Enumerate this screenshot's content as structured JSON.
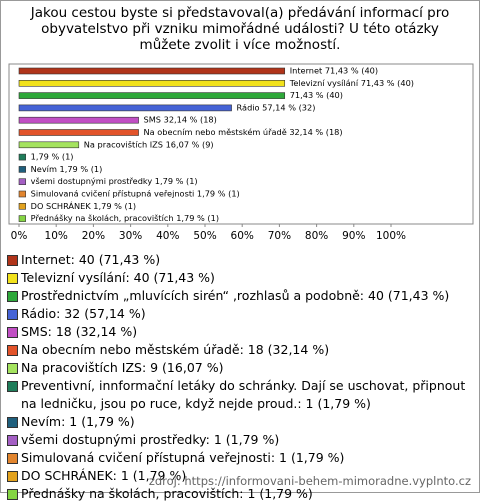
{
  "chart_data": {
    "type": "hbar",
    "title": "Jakou cestou byste si představoval(a) předávání informací pro obyvatelstvo při vzniku mimořádné události? U této otázky můžete zvolit i více možností.",
    "categories": [
      "Internet: 40 (71,43 %)",
      "Televizní vysílání: 40 (71,43 %)",
      "Prostřednictvím „mluvících sirén“ ,rozhlasů a podobně: 40 (71,43 %)",
      "Rádio: 32 (57,14 %)",
      "SMS: 18 (32,14 %)",
      "Na obecním nebo městském úřadě: 18 (32,14 %)",
      "Na pracovištích IZS: 9 (16,07 %)",
      "Preventivní, innformační letáky do schránky. Dají se uschovat, připnout na ledničku, jsou po ruce, když nejde proud.: 1 (1,79 %)",
      "Nevím: 1 (1,79 %)",
      "všemi dostupnými prostředky: 1 (1,79 %)",
      "Simulovaná cvičení přístupná veřejnosti: 1 (1,79 %)",
      "DO SCHRÁNEK: 1 (1,79 %)",
      "Přednášky na školách, pracovištích: 1 (1,79 %)"
    ],
    "values": [
      71.43,
      71.43,
      71.43,
      57.14,
      32.14,
      32.14,
      16.07,
      1.79,
      1.79,
      1.79,
      1.79,
      1.79,
      1.79
    ],
    "value_labels": [
      "Internet 71,43 % (40)",
      "Televizní vysílání 71,43 % (40)",
      "71,43 % (40)",
      "Rádio 57,14 % (32)",
      "SMS 32,14 % (18)",
      "Na obecním nebo městském úřadě 32,14 % (18)",
      "Na pracovištích IZS 16,07 % (9)",
      "1,79 % (1)",
      "Nevím 1,79 % (1)",
      "všemi dostupnými prostředky 1,79 % (1)",
      "Simulovaná cvičení přístupná veřejnosti 1,79 % (1)",
      "DO SCHRÁNEK 1,79 % (1)",
      "Přednášky na školách, pracovištích 1,79 % (1)"
    ],
    "colors": [
      "#b0341a",
      "#f2e21c",
      "#2ea83a",
      "#4563d6",
      "#c14fc4",
      "#e2532a",
      "#a4e35e",
      "#1f7d5a",
      "#1f5f7d",
      "#a45fc4",
      "#e2852e",
      "#e2a21e",
      "#84d443"
    ],
    "xlim": [
      0,
      100
    ],
    "xticks": [
      {
        "value": 0,
        "label": "0%"
      },
      {
        "value": 10,
        "label": "10%"
      },
      {
        "value": 20,
        "label": "20%"
      },
      {
        "value": 30,
        "label": "30%"
      },
      {
        "value": 40,
        "label": "40%"
      },
      {
        "value": 50,
        "label": "50%"
      },
      {
        "value": 60,
        "label": "60%"
      },
      {
        "value": 70,
        "label": "70%"
      },
      {
        "value": 80,
        "label": "80%"
      },
      {
        "value": 90,
        "label": "90%"
      },
      {
        "value": 100,
        "label": "100%"
      }
    ],
    "source": "zdroj: https://informovani-behem-mimoradne.vyplnto.cz"
  }
}
